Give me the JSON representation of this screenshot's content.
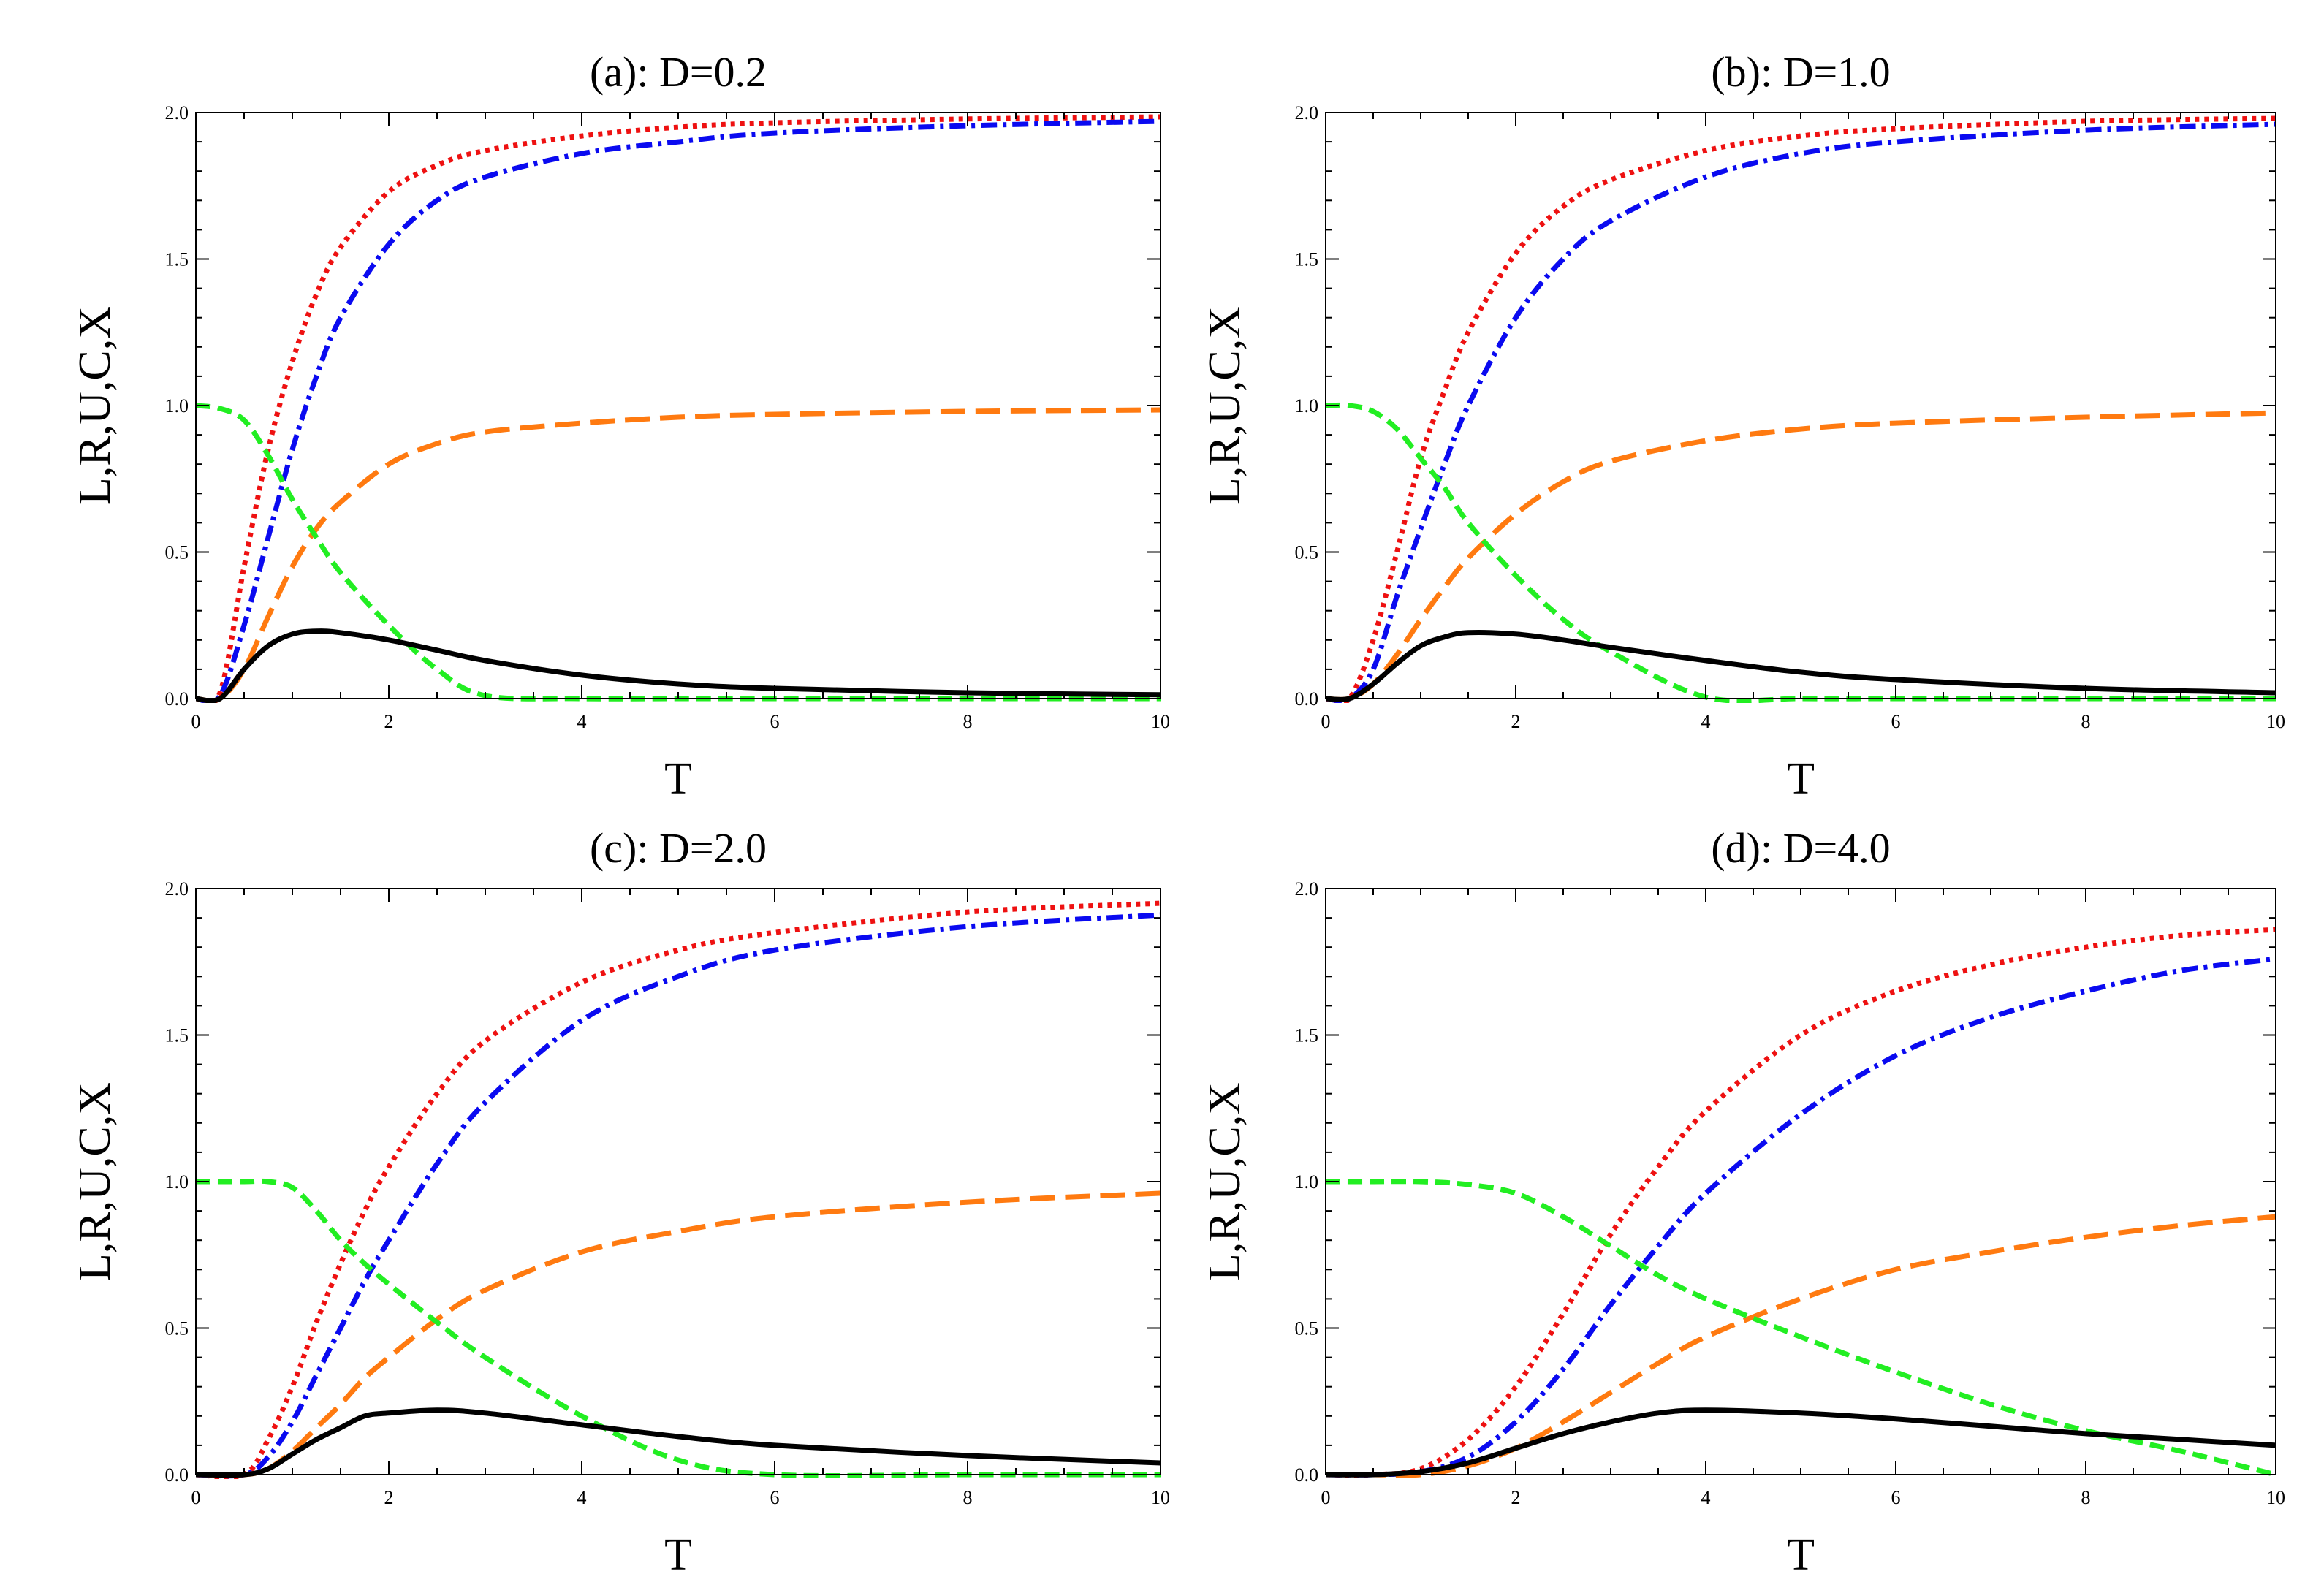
{
  "chart_data": [
    {
      "type": "line",
      "title": "(a): D=0.2",
      "xlabel": "T",
      "ylabel": "L,R,U,C,X",
      "xlim": [
        0,
        10
      ],
      "ylim": [
        0,
        2.0
      ],
      "xticks": [
        0,
        2,
        4,
        6,
        8,
        10
      ],
      "xtick_labels": [
        "0",
        "2",
        "4",
        "6",
        "8",
        "10"
      ],
      "yticks": [
        0,
        0.5,
        1.0,
        1.5,
        2.0
      ],
      "ytick_labels": [
        "0.0",
        "0.5",
        "1.0",
        "1.5",
        "2.0"
      ],
      "x": [
        0,
        0.25,
        0.5,
        0.75,
        1,
        1.25,
        1.5,
        2,
        2.5,
        3,
        4,
        5,
        6,
        8,
        10
      ],
      "series": [
        {
          "name": "red-dotted",
          "color": "#ee1111",
          "style": "dotted",
          "values": [
            0,
            0.02,
            0.45,
            0.85,
            1.15,
            1.38,
            1.54,
            1.73,
            1.82,
            1.87,
            1.92,
            1.95,
            1.965,
            1.978,
            1.985
          ]
        },
        {
          "name": "blue-dashdot",
          "color": "#0a0af0",
          "style": "dashdot",
          "values": [
            0,
            0.01,
            0.25,
            0.55,
            0.85,
            1.1,
            1.3,
            1.55,
            1.7,
            1.78,
            1.86,
            1.9,
            1.93,
            1.955,
            1.97
          ]
        },
        {
          "name": "orange-longdash",
          "color": "#ff7a10",
          "style": "longdash",
          "values": [
            0,
            0,
            0.1,
            0.28,
            0.45,
            0.58,
            0.67,
            0.8,
            0.87,
            0.91,
            0.94,
            0.96,
            0.97,
            0.98,
            0.985
          ]
        },
        {
          "name": "green-dashed",
          "color": "#22ee22",
          "style": "dashed",
          "values": [
            1,
            0.99,
            0.95,
            0.83,
            0.68,
            0.55,
            0.43,
            0.25,
            0.1,
            0.01,
            0,
            0,
            0,
            0,
            0
          ]
        },
        {
          "name": "black-solid",
          "color": "#000000",
          "style": "solid",
          "values": [
            0,
            0,
            0.1,
            0.18,
            0.22,
            0.23,
            0.225,
            0.2,
            0.165,
            0.13,
            0.08,
            0.05,
            0.035,
            0.02,
            0.013
          ]
        }
      ]
    },
    {
      "type": "line",
      "title": "(b): D=1.0",
      "xlabel": "T",
      "ylabel": "L,R,U,C,X",
      "xlim": [
        0,
        10
      ],
      "ylim": [
        0,
        2.0
      ],
      "xticks": [
        0,
        2,
        4,
        6,
        8,
        10
      ],
      "xtick_labels": [
        "0",
        "2",
        "4",
        "6",
        "8",
        "10"
      ],
      "yticks": [
        0,
        0.5,
        1.0,
        1.5,
        2.0
      ],
      "ytick_labels": [
        "0.0",
        "0.5",
        "1.0",
        "1.5",
        "2.0"
      ],
      "x": [
        0,
        0.25,
        0.5,
        0.75,
        1,
        1.25,
        1.5,
        2,
        2.5,
        3,
        4,
        5,
        6,
        8,
        10
      ],
      "series": [
        {
          "name": "red-dotted",
          "color": "#ee1111",
          "style": "dotted",
          "values": [
            0,
            0,
            0.2,
            0.5,
            0.82,
            1.05,
            1.25,
            1.52,
            1.68,
            1.77,
            1.87,
            1.92,
            1.945,
            1.97,
            1.98
          ]
        },
        {
          "name": "blue-dashdot",
          "color": "#0a0af0",
          "style": "dashdot",
          "values": [
            0,
            0,
            0.1,
            0.35,
            0.58,
            0.8,
            1.0,
            1.3,
            1.5,
            1.63,
            1.78,
            1.86,
            1.9,
            1.94,
            1.96
          ]
        },
        {
          "name": "orange-longdash",
          "color": "#ff7a10",
          "style": "longdash",
          "values": [
            0,
            0,
            0.05,
            0.15,
            0.27,
            0.38,
            0.48,
            0.63,
            0.74,
            0.81,
            0.88,
            0.92,
            0.94,
            0.96,
            0.975
          ]
        },
        {
          "name": "green-dashed",
          "color": "#22ee22",
          "style": "dashed",
          "values": [
            1,
            1,
            0.98,
            0.92,
            0.82,
            0.72,
            0.6,
            0.42,
            0.27,
            0.16,
            0.005,
            0,
            0,
            0,
            0
          ]
        },
        {
          "name": "black-solid",
          "color": "#000000",
          "style": "solid",
          "values": [
            0,
            0,
            0.05,
            0.12,
            0.18,
            0.21,
            0.225,
            0.22,
            0.2,
            0.175,
            0.13,
            0.09,
            0.065,
            0.035,
            0.02
          ]
        }
      ]
    },
    {
      "type": "line",
      "title": "(c): D=2.0",
      "xlabel": "T",
      "ylabel": "L,R,U,C,X",
      "xlim": [
        0,
        10
      ],
      "ylim": [
        0,
        2.0
      ],
      "xticks": [
        0,
        2,
        4,
        6,
        8,
        10
      ],
      "xtick_labels": [
        "0",
        "2",
        "4",
        "6",
        "8",
        "10"
      ],
      "yticks": [
        0,
        0.5,
        1.0,
        1.5,
        2.0
      ],
      "ytick_labels": [
        "0.0",
        "0.5",
        "1.0",
        "1.5",
        "2.0"
      ],
      "x": [
        0,
        0.5,
        0.75,
        1,
        1.25,
        1.5,
        1.75,
        2,
        2.5,
        3,
        4,
        5,
        6,
        8,
        10
      ],
      "series": [
        {
          "name": "red-dotted",
          "color": "#ee1111",
          "style": "dotted",
          "values": [
            0,
            0,
            0.12,
            0.3,
            0.52,
            0.72,
            0.9,
            1.05,
            1.3,
            1.48,
            1.68,
            1.79,
            1.85,
            1.92,
            1.95
          ]
        },
        {
          "name": "blue-dashdot",
          "color": "#0a0af0",
          "style": "dashdot",
          "values": [
            0,
            0,
            0.06,
            0.18,
            0.34,
            0.5,
            0.66,
            0.8,
            1.06,
            1.27,
            1.55,
            1.7,
            1.79,
            1.87,
            1.91
          ]
        },
        {
          "name": "orange-longdash",
          "color": "#ff7a10",
          "style": "longdash",
          "values": [
            0,
            0,
            0.02,
            0.08,
            0.16,
            0.24,
            0.33,
            0.4,
            0.53,
            0.63,
            0.76,
            0.83,
            0.88,
            0.93,
            0.96
          ]
        },
        {
          "name": "green-dashed",
          "color": "#22ee22",
          "style": "dashed",
          "values": [
            1,
            1,
            1,
            0.98,
            0.9,
            0.8,
            0.72,
            0.65,
            0.52,
            0.4,
            0.2,
            0.05,
            0,
            0,
            0
          ]
        },
        {
          "name": "black-solid",
          "color": "#000000",
          "style": "solid",
          "values": [
            0,
            0,
            0.02,
            0.07,
            0.12,
            0.16,
            0.2,
            0.21,
            0.22,
            0.21,
            0.17,
            0.13,
            0.1,
            0.065,
            0.04
          ]
        }
      ]
    },
    {
      "type": "line",
      "title": "(d): D=4.0",
      "xlabel": "T",
      "ylabel": "L,R,U,C,X",
      "xlim": [
        0,
        10
      ],
      "ylim": [
        0,
        2.0
      ],
      "xticks": [
        0,
        2,
        4,
        6,
        8,
        10
      ],
      "xtick_labels": [
        "0",
        "2",
        "4",
        "6",
        "8",
        "10"
      ],
      "yticks": [
        0,
        0.5,
        1.0,
        1.5,
        2.0
      ],
      "ytick_labels": [
        "0.0",
        "0.5",
        "1.0",
        "1.5",
        "2.0"
      ],
      "x": [
        0,
        0.5,
        1,
        1.5,
        2,
        2.5,
        3,
        3.5,
        4,
        5,
        6,
        7,
        8,
        9,
        10
      ],
      "series": [
        {
          "name": "red-dotted",
          "color": "#ee1111",
          "style": "dotted",
          "values": [
            0,
            0,
            0.02,
            0.12,
            0.3,
            0.55,
            0.82,
            1.05,
            1.24,
            1.5,
            1.65,
            1.74,
            1.8,
            1.84,
            1.86
          ]
        },
        {
          "name": "blue-dashdot",
          "color": "#0a0af0",
          "style": "dashdot",
          "values": [
            0,
            0,
            0.01,
            0.06,
            0.18,
            0.36,
            0.58,
            0.78,
            0.96,
            1.23,
            1.43,
            1.56,
            1.65,
            1.72,
            1.76
          ]
        },
        {
          "name": "orange-longdash",
          "color": "#ff7a10",
          "style": "longdash",
          "values": [
            0,
            0,
            0,
            0.03,
            0.09,
            0.18,
            0.28,
            0.38,
            0.47,
            0.6,
            0.7,
            0.76,
            0.81,
            0.85,
            0.88
          ]
        },
        {
          "name": "green-dashed",
          "color": "#22ee22",
          "style": "dashed",
          "values": [
            1,
            1,
            1,
            0.99,
            0.96,
            0.88,
            0.78,
            0.68,
            0.6,
            0.47,
            0.35,
            0.24,
            0.15,
            0.08,
            0
          ]
        },
        {
          "name": "black-solid",
          "color": "#000000",
          "style": "solid",
          "values": [
            0,
            0,
            0.01,
            0.04,
            0.09,
            0.14,
            0.18,
            0.21,
            0.22,
            0.21,
            0.19,
            0.165,
            0.14,
            0.12,
            0.1
          ]
        }
      ]
    }
  ]
}
